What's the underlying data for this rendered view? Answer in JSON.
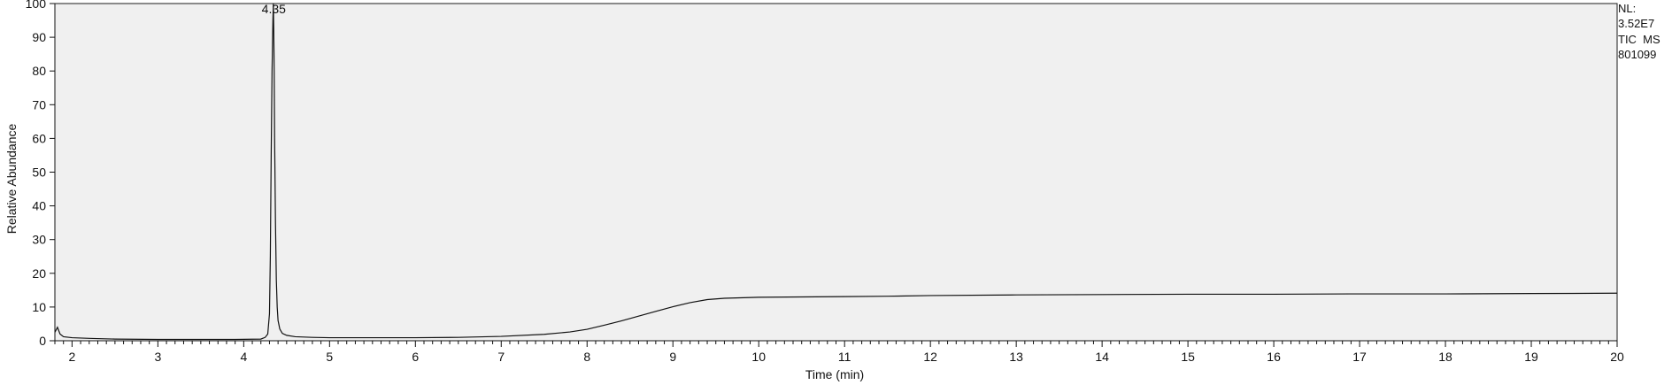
{
  "chart_data": {
    "type": "line",
    "title": "",
    "xlabel": "Time (min)",
    "ylabel": "Relative Abundance",
    "xlim": [
      1.8,
      20
    ],
    "ylim": [
      0,
      100
    ],
    "x_ticks": [
      2,
      3,
      4,
      5,
      6,
      7,
      8,
      9,
      10,
      11,
      12,
      13,
      14,
      15,
      16,
      17,
      18,
      19,
      20
    ],
    "y_ticks": [
      0,
      10,
      20,
      30,
      40,
      50,
      60,
      70,
      80,
      90,
      100
    ],
    "x_tick_labels": [
      "2",
      "3",
      "4",
      "5",
      "6",
      "7",
      "8",
      "9",
      "10",
      "11",
      "12",
      "13",
      "14",
      "15",
      "16",
      "17",
      "18",
      "19",
      "20"
    ],
    "y_tick_labels": [
      "0",
      "10",
      "20",
      "30",
      "40",
      "50",
      "60",
      "70",
      "80",
      "90",
      "100"
    ],
    "grid": false,
    "plot_background": "#f0f0f0",
    "line_color": "#111111",
    "annotations": [
      {
        "text": "4.35",
        "x": 4.35,
        "y": 100
      }
    ],
    "side_info": [
      "NL:",
      "3.52E7",
      "TIC  MS",
      "801099"
    ],
    "series": [
      {
        "x": [
          1.8,
          1.83,
          1.86,
          1.9,
          2.0,
          2.2,
          2.5,
          3.0,
          3.5,
          3.9,
          4.2,
          4.25,
          4.28,
          4.3,
          4.31,
          4.32,
          4.33,
          4.34,
          4.345,
          4.35,
          4.355,
          4.36,
          4.37,
          4.38,
          4.39,
          4.4,
          4.42,
          4.45,
          4.5,
          4.6,
          4.8,
          5.0,
          5.5,
          6.0,
          6.5,
          7.0,
          7.5,
          7.8,
          8.0,
          8.2,
          8.4,
          8.6,
          8.8,
          9.0,
          9.2,
          9.4,
          9.6,
          10.0,
          10.5,
          11.0,
          11.5,
          12.0,
          13.0,
          14.0,
          15.0,
          16.0,
          17.0,
          18.0,
          19.0,
          20.0
        ],
        "y": [
          2.5,
          4.0,
          2.0,
          1.2,
          0.9,
          0.7,
          0.5,
          0.4,
          0.4,
          0.4,
          0.5,
          1.0,
          2.0,
          8.0,
          25.0,
          55.0,
          80.0,
          95.0,
          100.0,
          92.0,
          80.0,
          60.0,
          35.0,
          18.0,
          10.0,
          6.0,
          3.5,
          2.2,
          1.6,
          1.2,
          1.0,
          0.9,
          0.9,
          0.9,
          1.0,
          1.3,
          1.9,
          2.6,
          3.4,
          4.6,
          5.9,
          7.3,
          8.7,
          10.1,
          11.3,
          12.2,
          12.6,
          12.9,
          13.0,
          13.1,
          13.2,
          13.4,
          13.6,
          13.7,
          13.8,
          13.8,
          13.9,
          13.9,
          14.0,
          14.1
        ]
      }
    ]
  }
}
